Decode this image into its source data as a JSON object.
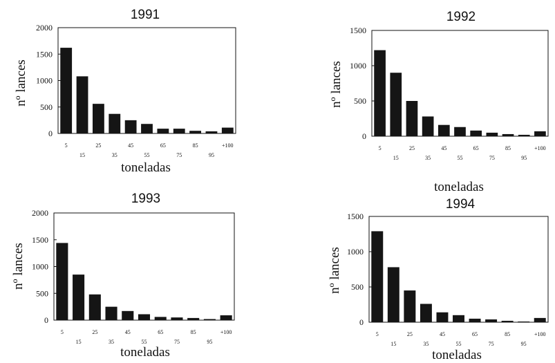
{
  "chart_data": [
    {
      "type": "bar",
      "title": "1991",
      "xlabel": "toneladas",
      "ylabel": "nº lances",
      "ylim": [
        0,
        2000
      ],
      "yticks": [
        "0",
        "500",
        "1000",
        "1500",
        "2000"
      ],
      "categories": [
        "5",
        "15",
        "25",
        "35",
        "45",
        "55",
        "65",
        "75",
        "85",
        "95",
        "+100"
      ],
      "values": [
        1620,
        1080,
        560,
        370,
        250,
        180,
        90,
        90,
        50,
        40,
        110
      ],
      "grid": false
    },
    {
      "type": "bar",
      "title": "1992",
      "xlabel": "toneladas",
      "ylabel": "nº lances",
      "ylim": [
        0,
        1500
      ],
      "yticks": [
        "0",
        "500",
        "1000",
        "1500"
      ],
      "categories": [
        "5",
        "15",
        "25",
        "35",
        "45",
        "55",
        "65",
        "75",
        "85",
        "95",
        "+100"
      ],
      "values": [
        1220,
        900,
        500,
        280,
        160,
        130,
        80,
        50,
        30,
        20,
        70
      ],
      "grid": false
    },
    {
      "type": "bar",
      "title": "1993",
      "xlabel": "toneladas",
      "ylabel": "nº lances",
      "ylim": [
        0,
        2000
      ],
      "yticks": [
        "0",
        "500",
        "1000",
        "1500",
        "2000"
      ],
      "categories": [
        "5",
        "15",
        "25",
        "35",
        "45",
        "55",
        "65",
        "75",
        "85",
        "95",
        "+100"
      ],
      "values": [
        1440,
        850,
        480,
        250,
        170,
        110,
        60,
        50,
        40,
        20,
        90
      ],
      "grid": false
    },
    {
      "type": "bar",
      "title": "1994",
      "xlabel": "toneladas",
      "ylabel": "nº lances",
      "ylim": [
        0,
        1500
      ],
      "yticks": [
        "0",
        "500",
        "1000",
        "1500"
      ],
      "categories": [
        "5",
        "15",
        "25",
        "35",
        "45",
        "55",
        "65",
        "75",
        "85",
        "95",
        "+100"
      ],
      "values": [
        1290,
        780,
        450,
        260,
        140,
        100,
        50,
        40,
        20,
        10,
        60
      ],
      "grid": false
    }
  ]
}
